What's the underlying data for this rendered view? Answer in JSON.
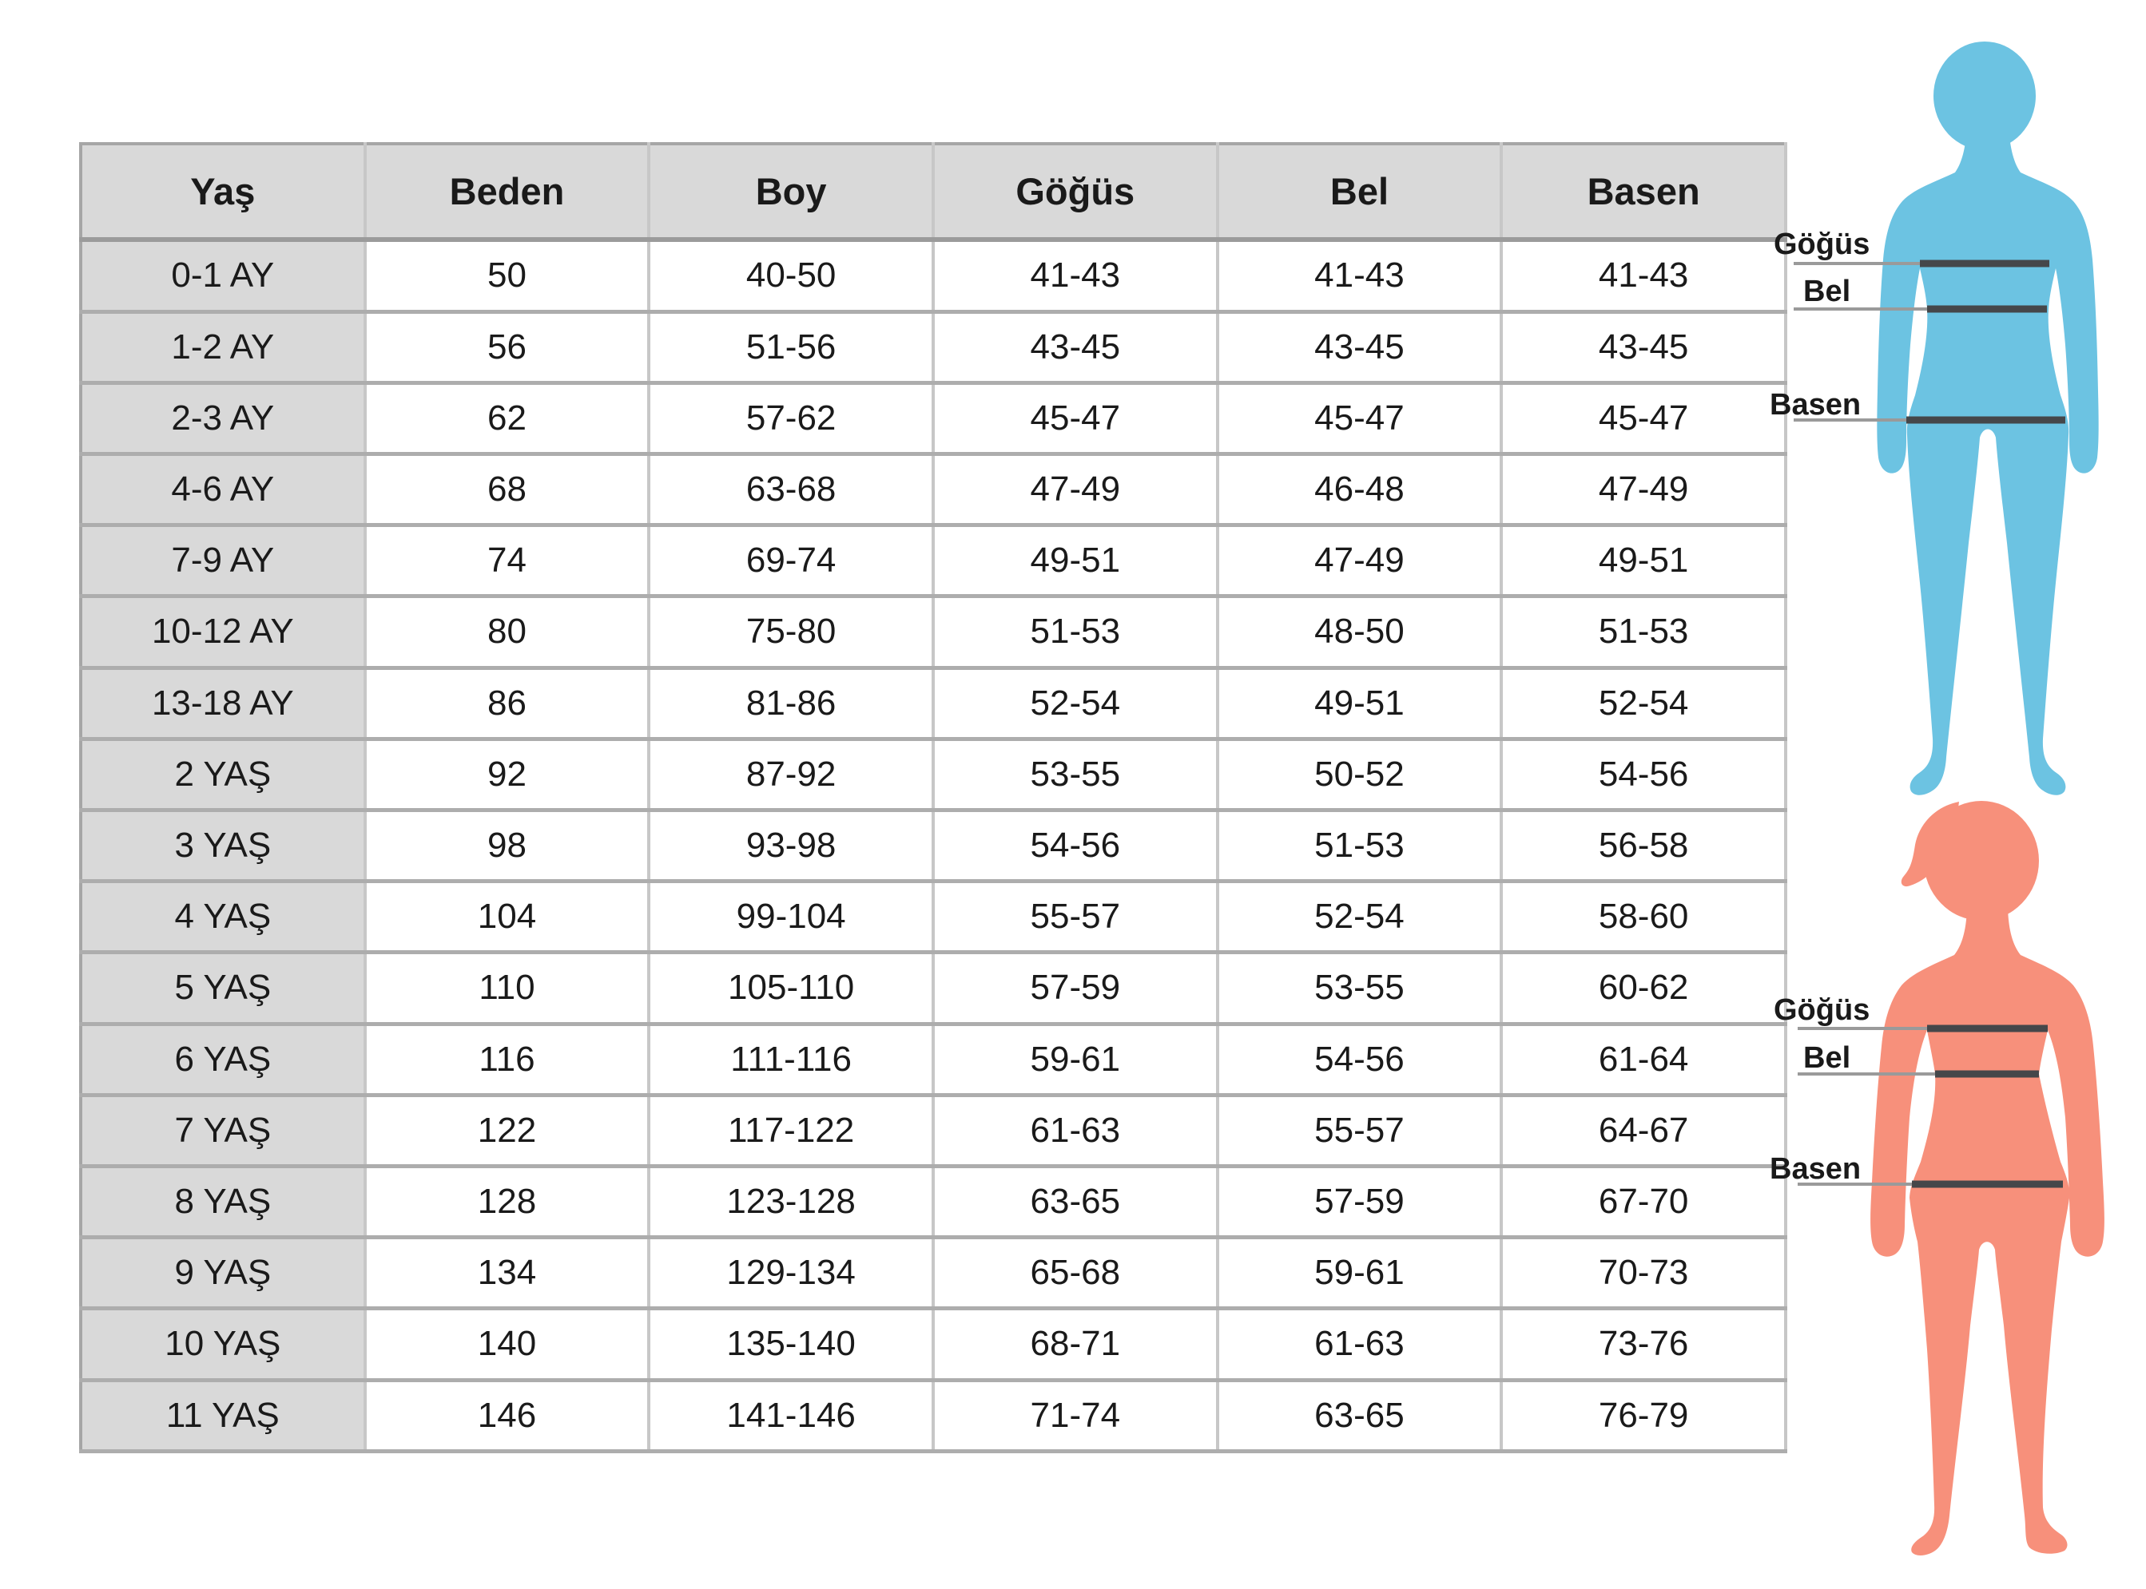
{
  "chart_data": {
    "type": "table",
    "columns": [
      "Yaş",
      "Beden",
      "Boy",
      "Göğüs",
      "Bel",
      "Basen"
    ],
    "rows": [
      [
        "0-1 AY",
        "50",
        "40-50",
        "41-43",
        "41-43",
        "41-43"
      ],
      [
        "1-2 AY",
        "56",
        "51-56",
        "43-45",
        "43-45",
        "43-45"
      ],
      [
        "2-3 AY",
        "62",
        "57-62",
        "45-47",
        "45-47",
        "45-47"
      ],
      [
        "4-6 AY",
        "68",
        "63-68",
        "47-49",
        "46-48",
        "47-49"
      ],
      [
        "7-9 AY",
        "74",
        "69-74",
        "49-51",
        "47-49",
        "49-51"
      ],
      [
        "10-12 AY",
        "80",
        "75-80",
        "51-53",
        "48-50",
        "51-53"
      ],
      [
        "13-18 AY",
        "86",
        "81-86",
        "52-54",
        "49-51",
        "52-54"
      ],
      [
        "2 YAŞ",
        "92",
        "87-92",
        "53-55",
        "50-52",
        "54-56"
      ],
      [
        "3 YAŞ",
        "98",
        "93-98",
        "54-56",
        "51-53",
        "56-58"
      ],
      [
        "4 YAŞ",
        "104",
        "99-104",
        "55-57",
        "52-54",
        "58-60"
      ],
      [
        "5 YAŞ",
        "110",
        "105-110",
        "57-59",
        "53-55",
        "60-62"
      ],
      [
        "6 YAŞ",
        "116",
        "111-116",
        "59-61",
        "54-56",
        "61-64"
      ],
      [
        "7 YAŞ",
        "122",
        "117-122",
        "61-63",
        "55-57",
        "64-67"
      ],
      [
        "8 YAŞ",
        "128",
        "123-128",
        "63-65",
        "57-59",
        "67-70"
      ],
      [
        "9 YAŞ",
        "134",
        "129-134",
        "65-68",
        "59-61",
        "70-73"
      ],
      [
        "10 YAŞ",
        "140",
        "135-140",
        "68-71",
        "61-63",
        "73-76"
      ],
      [
        "11 YAŞ",
        "146",
        "141-146",
        "71-74",
        "63-65",
        "76-79"
      ]
    ]
  },
  "figures": {
    "boy": {
      "color": "#6CC3E2",
      "labels": {
        "chest": "Göğüs",
        "waist": "Bel",
        "hip": "Basen"
      }
    },
    "girl": {
      "color": "#F7907B",
      "labels": {
        "chest": "Göğüs",
        "waist": "Bel",
        "hip": "Basen"
      }
    }
  },
  "colors": {
    "header_bg": "#D9D9D9",
    "age_column_bg": "#D9D9D9",
    "grid_vertical": "#C7C7C7",
    "grid_horizontal": "#ADADAD",
    "table_border": "#A6A6A6",
    "text": "#1A1A1A",
    "measure_line": "#45474A",
    "extension_line": "#9A9A9A"
  }
}
